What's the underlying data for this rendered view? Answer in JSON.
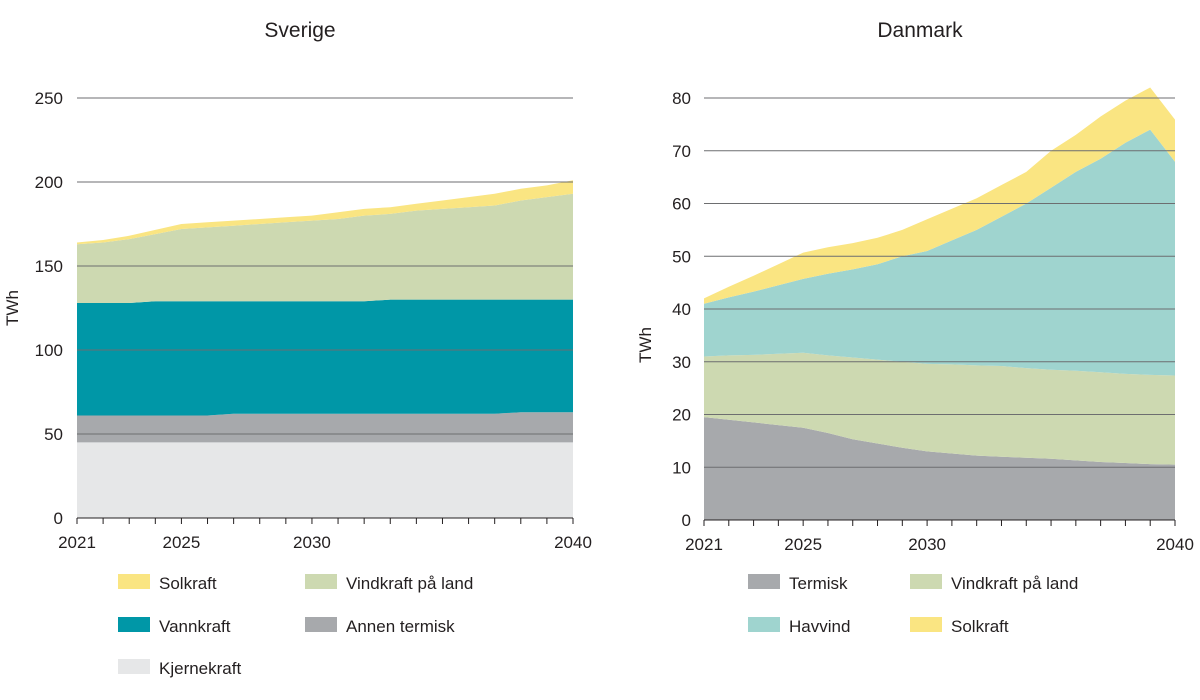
{
  "chart_data": [
    {
      "type": "area",
      "stacked": true,
      "title": "Sverige",
      "xlabel": "",
      "ylabel": "TWh",
      "x": [
        2021,
        2022,
        2023,
        2024,
        2025,
        2026,
        2027,
        2028,
        2029,
        2030,
        2031,
        2032,
        2033,
        2034,
        2035,
        2036,
        2037,
        2038,
        2039,
        2040
      ],
      "xticks": [
        "2021",
        "2025",
        "2030",
        "2040"
      ],
      "yticks": [
        "0",
        "50",
        "100",
        "150",
        "200",
        "250"
      ],
      "ylim": [
        0,
        250
      ],
      "series": [
        {
          "name": "Kjernekraft",
          "color": "#e6e7e8",
          "values": [
            45,
            45,
            45,
            45,
            45,
            45,
            45,
            45,
            45,
            45,
            45,
            45,
            45,
            45,
            45,
            45,
            45,
            45,
            45,
            45
          ]
        },
        {
          "name": "Annen termisk",
          "color": "#a7a9ac",
          "values": [
            16,
            16,
            16,
            16,
            16,
            16,
            17,
            17,
            17,
            17,
            17,
            17,
            17,
            17,
            17,
            17,
            17,
            18,
            18,
            18
          ]
        },
        {
          "name": "Vannkraft",
          "color": "#0097a7",
          "values": [
            67,
            67,
            67,
            68,
            68,
            68,
            67,
            67,
            67,
            67,
            67,
            67,
            68,
            68,
            68,
            68,
            68,
            67,
            67,
            67
          ]
        },
        {
          "name": "Vindkraft på land",
          "color": "#cdd9b1",
          "values": [
            35,
            36,
            38,
            40,
            43,
            44,
            45,
            46,
            47,
            48,
            49,
            51,
            51,
            53,
            54,
            55,
            56,
            59,
            61,
            63
          ]
        },
        {
          "name": "Solkraft",
          "color": "#fae582",
          "values": [
            1,
            1.5,
            2,
            2.5,
            3,
            3,
            3,
            3,
            3,
            3,
            4,
            4,
            4,
            4,
            5,
            6,
            7,
            7,
            7,
            8
          ]
        }
      ],
      "legend": [
        {
          "label": "Solkraft",
          "color": "#fae582"
        },
        {
          "label": "Vindkraft på land",
          "color": "#cdd9b1"
        },
        {
          "label": "Vannkraft",
          "color": "#0097a7"
        },
        {
          "label": "Annen termisk",
          "color": "#a7a9ac"
        },
        {
          "label": "Kjernekraft",
          "color": "#e6e7e8"
        }
      ],
      "legend_position": "bottom"
    },
    {
      "type": "area",
      "stacked": true,
      "title": "Danmark",
      "xlabel": "",
      "ylabel": "TWh",
      "x": [
        2021,
        2022,
        2023,
        2024,
        2025,
        2026,
        2027,
        2028,
        2029,
        2030,
        2031,
        2032,
        2033,
        2034,
        2035,
        2036,
        2037,
        2038,
        2039,
        2040
      ],
      "xticks": [
        "2021",
        "2025",
        "2030",
        "2040"
      ],
      "yticks": [
        "0",
        "10",
        "20",
        "30",
        "40",
        "50",
        "60",
        "70",
        "80"
      ],
      "ylim": [
        0,
        80
      ],
      "series": [
        {
          "name": "Termisk",
          "color": "#a7a9ac",
          "values": [
            19.5,
            19,
            18.5,
            18,
            17.5,
            16.5,
            15.3,
            14.5,
            13.7,
            13,
            12.6,
            12.2,
            12,
            11.8,
            11.6,
            11.3,
            11,
            10.8,
            10.6,
            10.5
          ]
        },
        {
          "name": "Vindkraft på land",
          "color": "#cdd9b1",
          "values": [
            11.5,
            12.2,
            12.8,
            13.5,
            14.2,
            14.7,
            15.5,
            15.9,
            16.3,
            16.6,
            16.9,
            17.1,
            17.2,
            17.0,
            16.9,
            17.0,
            17.0,
            16.9,
            16.9,
            16.9
          ]
        },
        {
          "name": "Havvind",
          "color": "#9fd4cf",
          "values": [
            10,
            11,
            12,
            13,
            14,
            15.5,
            16.7,
            18.1,
            20,
            21.4,
            23.5,
            25.7,
            28.3,
            31.2,
            34.5,
            37.7,
            40.5,
            43.8,
            46.5,
            40.5
          ]
        },
        {
          "name": "Solkraft",
          "color": "#fae582",
          "values": [
            1,
            2,
            3,
            4,
            5,
            5,
            5,
            5,
            5,
            6,
            6,
            6,
            6,
            6,
            7,
            7,
            8,
            8,
            8,
            8
          ]
        }
      ],
      "legend": [
        {
          "label": "Termisk",
          "color": "#a7a9ac"
        },
        {
          "label": "Vindkraft på land",
          "color": "#cdd9b1"
        },
        {
          "label": "Havvind",
          "color": "#9fd4cf"
        },
        {
          "label": "Solkraft",
          "color": "#fae582"
        }
      ],
      "legend_position": "bottom"
    }
  ]
}
